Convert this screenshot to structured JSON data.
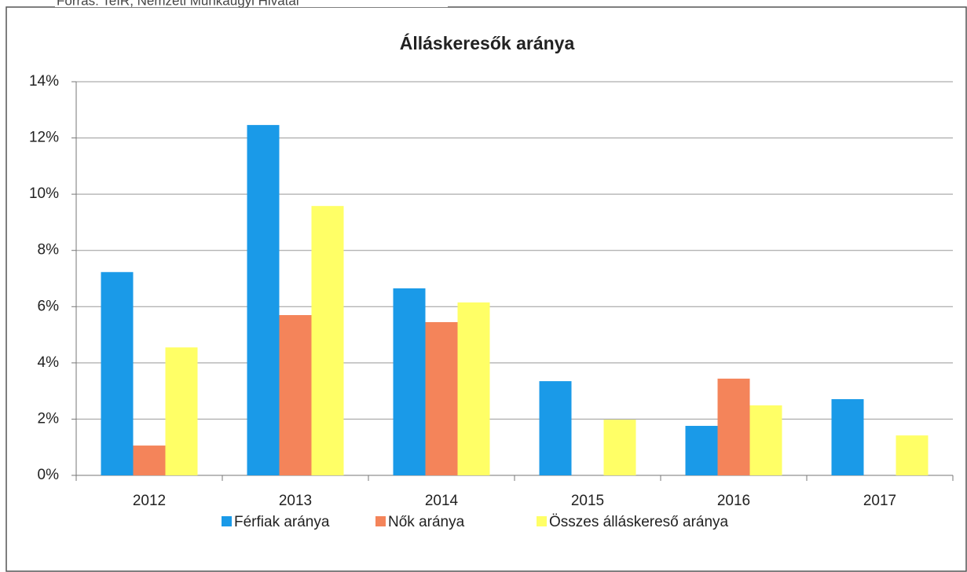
{
  "source": "Forrás: TeIR, Nemzeti Munkaügyi Hivatal",
  "chart_data": {
    "type": "bar",
    "title": "Álláskeresők aránya",
    "categories": [
      "2012",
      "2013",
      "2014",
      "2015",
      "2016",
      "2017"
    ],
    "series": [
      {
        "name": "Férfiak aránya",
        "color": "#1a9ae8",
        "values": [
          7.23,
          12.46,
          6.65,
          3.35,
          1.76,
          2.71
        ]
      },
      {
        "name": "Nők aránya",
        "color": "#f4845a",
        "values": [
          1.06,
          5.7,
          5.45,
          0,
          3.44,
          0
        ]
      },
      {
        "name": "Összes álláskereső aránya",
        "color": "#ffff66",
        "values": [
          4.55,
          9.58,
          6.15,
          1.98,
          2.49,
          1.42
        ]
      }
    ],
    "ylim": [
      0,
      14
    ],
    "yticks": [
      {
        "value": 0,
        "label": "0%"
      },
      {
        "value": 2,
        "label": "2%"
      },
      {
        "value": 4,
        "label": "4%"
      },
      {
        "value": 6,
        "label": "6%"
      },
      {
        "value": 8,
        "label": "8%"
      },
      {
        "value": 10,
        "label": "10%"
      },
      {
        "value": 12,
        "label": "12%"
      },
      {
        "value": 14,
        "label": "14%"
      }
    ],
    "grid": true,
    "legend": "bottom"
  }
}
